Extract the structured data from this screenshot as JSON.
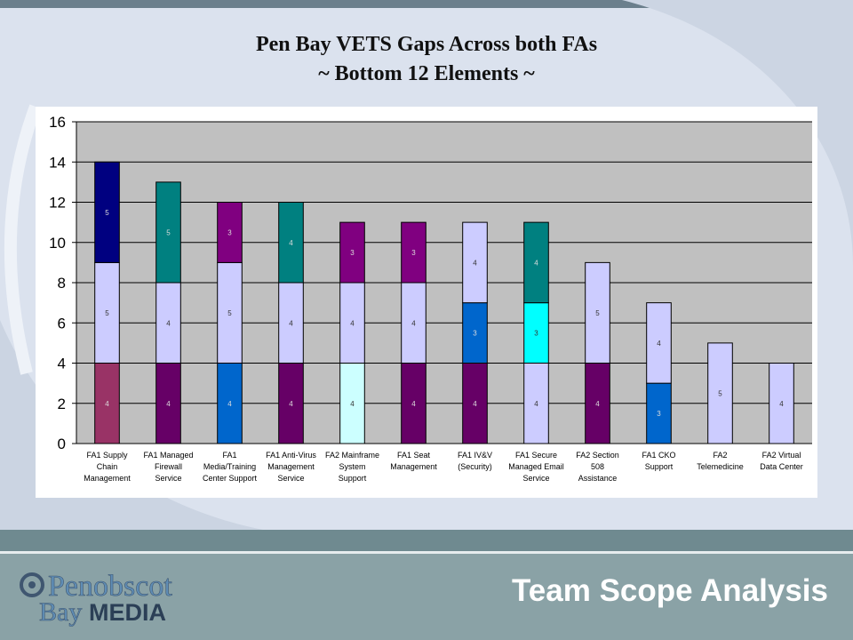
{
  "slide": {
    "title_line1": "Pen Bay VETS Gaps Across both FAs",
    "title_line2": "~ Bottom 12 Elements ~",
    "footer_heading": "Team Scope Analysis",
    "logo_text": "Penobscot BayMEDIA"
  },
  "chart_data": {
    "type": "bar",
    "stacked": true,
    "ylim": [
      0,
      16
    ],
    "yticks": [
      0,
      2,
      4,
      6,
      8,
      10,
      12,
      14,
      16
    ],
    "grid": true,
    "background_color": "#c0c0c0",
    "categories": [
      [
        "FA1 Supply",
        "Chain",
        "Management"
      ],
      [
        "FA1 Managed",
        "Firewall",
        "Service"
      ],
      [
        "FA1",
        "Media/Training",
        "Center Support"
      ],
      [
        "FA1 Anti-Virus",
        "Management",
        "Service"
      ],
      [
        "FA2 Mainframe",
        "System",
        "Support"
      ],
      [
        "FA1 Seat",
        "Management"
      ],
      [
        "FA1 IV&V",
        "(Security)"
      ],
      [
        "FA1 Secure",
        "Managed Email",
        "Service"
      ],
      [
        "FA2 Section",
        "508",
        "Assistance"
      ],
      [
        "FA1 CKO",
        "Support"
      ],
      [
        "FA2",
        "Telemedicine"
      ],
      [
        "FA2 Virtual",
        "Data Center"
      ]
    ],
    "stacks": [
      [
        {
          "value": 4,
          "color": "#993366"
        },
        {
          "value": 5,
          "color": "#ccccff"
        },
        {
          "value": 5,
          "color": "#000080"
        }
      ],
      [
        {
          "value": 4,
          "color": "#660066"
        },
        {
          "value": 4,
          "color": "#ccccff"
        },
        {
          "value": 5,
          "color": "#008080"
        }
      ],
      [
        {
          "value": 4,
          "color": "#0066cc"
        },
        {
          "value": 5,
          "color": "#ccccff"
        },
        {
          "value": 3,
          "color": "#800080"
        }
      ],
      [
        {
          "value": 4,
          "color": "#660066"
        },
        {
          "value": 4,
          "color": "#ccccff"
        },
        {
          "value": 4,
          "color": "#008080"
        }
      ],
      [
        {
          "value": 4,
          "color": "#ccffff"
        },
        {
          "value": 4,
          "color": "#ccccff"
        },
        {
          "value": 3,
          "color": "#800080"
        }
      ],
      [
        {
          "value": 4,
          "color": "#660066"
        },
        {
          "value": 4,
          "color": "#ccccff"
        },
        {
          "value": 3,
          "color": "#800080"
        }
      ],
      [
        {
          "value": 4,
          "color": "#660066"
        },
        {
          "value": 3,
          "color": "#0066cc"
        },
        {
          "value": 4,
          "color": "#ccccff"
        }
      ],
      [
        {
          "value": 4,
          "color": "#ccccff"
        },
        {
          "value": 3,
          "color": "#00ffff"
        },
        {
          "value": 4,
          "color": "#008080"
        }
      ],
      [
        {
          "value": 4,
          "color": "#660066"
        },
        {
          "value": 5,
          "color": "#ccccff"
        }
      ],
      [
        {
          "value": 3,
          "color": "#0066cc"
        },
        {
          "value": 4,
          "color": "#ccccff"
        }
      ],
      [
        {
          "value": 5,
          "color": "#ccccff"
        }
      ],
      [
        {
          "value": 4,
          "color": "#ccccff"
        }
      ]
    ]
  }
}
